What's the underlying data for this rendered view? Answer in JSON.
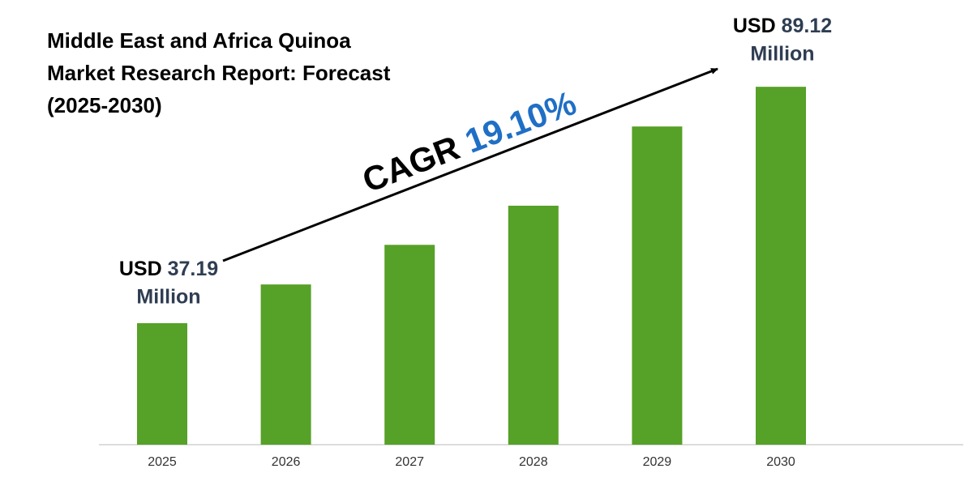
{
  "chart_data": {
    "type": "bar",
    "title_lines": [
      "Middle East and Africa Quinoa",
      "Market Research Report: Forecast",
      "(2025-2030)"
    ],
    "categories": [
      "2025",
      "2026",
      "2027",
      "2028",
      "2029",
      "2030"
    ],
    "values": [
      37.19,
      45.7,
      54.4,
      63.0,
      80.4,
      89.12
    ],
    "color": "#56a127",
    "ylim": [
      10.5,
      100
    ],
    "unit_prefix": "USD",
    "unit_suffix": "Million",
    "cagr_label": "CAGR",
    "cagr_value": "19.10%"
  }
}
